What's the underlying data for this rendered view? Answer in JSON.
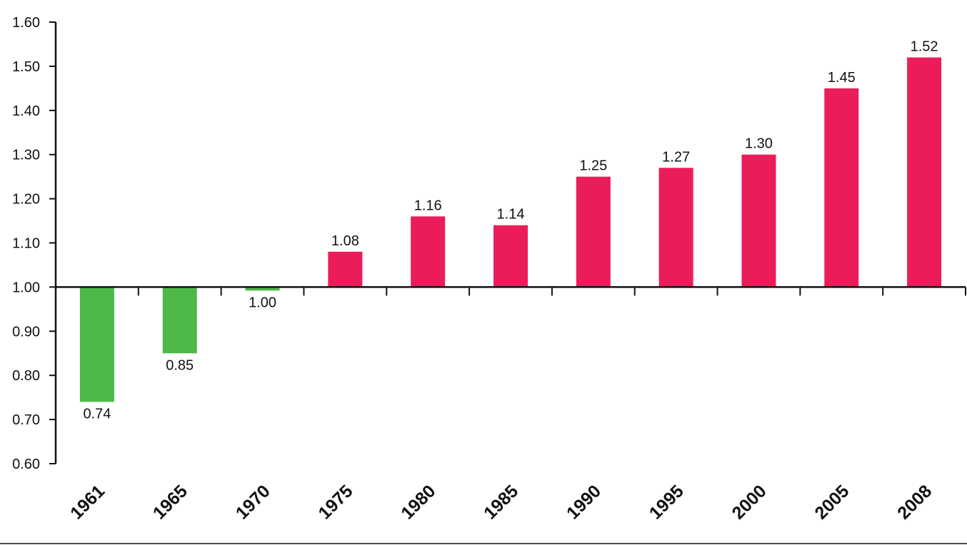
{
  "chart_data": {
    "type": "bar",
    "title": "",
    "xlabel": "",
    "ylabel": "",
    "baseline": 1.0,
    "ylim": [
      0.6,
      1.6
    ],
    "yticks": [
      "0.60",
      "0.70",
      "0.80",
      "0.90",
      "1.00",
      "1.10",
      "1.20",
      "1.30",
      "1.40",
      "1.50",
      "1.60"
    ],
    "categories": [
      "1961",
      "1965",
      "1970",
      "1975",
      "1980",
      "1985",
      "1990",
      "1995",
      "2000",
      "2005",
      "2008"
    ],
    "values": [
      0.74,
      0.85,
      1.0,
      1.08,
      1.16,
      1.14,
      1.25,
      1.27,
      1.3,
      1.45,
      1.52
    ],
    "value_labels": [
      "0.74",
      "0.85",
      "1.00",
      "1.08",
      "1.16",
      "1.14",
      "1.25",
      "1.27",
      "1.30",
      "1.45",
      "1.52"
    ],
    "colors": {
      "below_or_equal_baseline": "#4db848",
      "above_baseline": "#eb1c5a"
    },
    "grid": false,
    "legend": "none"
  }
}
